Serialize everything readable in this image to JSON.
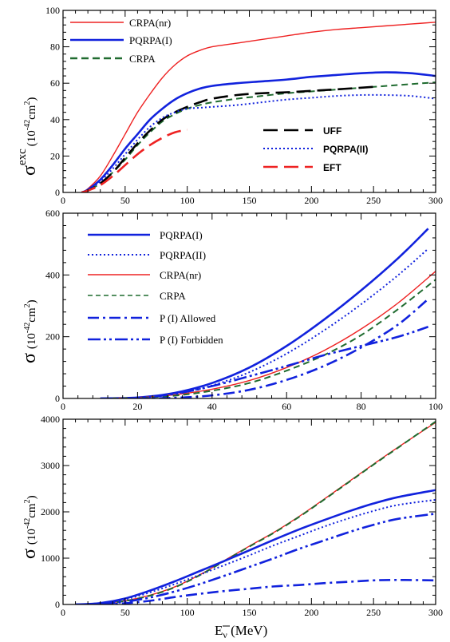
{
  "chart_data": [
    {
      "type": "line",
      "panel": "top",
      "ylabel_main": "σ",
      "ylabel_sup": "exc",
      "ylabel_units": "(10",
      "ylabel_exp": "-42",
      "ylabel_tail": "cm",
      "ylabel_tail_sup": "2",
      "ylabel_close": ")",
      "xlim": [
        0,
        300
      ],
      "ylim": [
        0,
        100
      ],
      "xticks": [
        "0",
        "50",
        "100",
        "150",
        "200",
        "250",
        "300"
      ],
      "yticks": [
        "0",
        "20",
        "40",
        "60",
        "80",
        "100"
      ],
      "legend_left": [
        "CRPA(nr)",
        "PQRPA(I)",
        "CRPA"
      ],
      "legend_right": [
        "UFF",
        "PQRPA(II)",
        "EFT"
      ],
      "series": [
        {
          "name": "CRPA(nr)",
          "color": "#ee2222",
          "style": "solid-thin",
          "x": [
            15,
            20,
            30,
            40,
            50,
            60,
            70,
            80,
            90,
            100,
            110,
            120,
            140,
            160,
            180,
            200,
            220,
            240,
            260,
            280,
            300
          ],
          "y": [
            0,
            2,
            9,
            20,
            32,
            44,
            54,
            63,
            70,
            75,
            78,
            80,
            82,
            84,
            86,
            88,
            89.5,
            90.5,
            91.5,
            92.5,
            93.5
          ]
        },
        {
          "name": "PQRPA(I)",
          "color": "#1122dd",
          "style": "solid-thick",
          "x": [
            15,
            20,
            30,
            40,
            50,
            60,
            70,
            80,
            90,
            100,
            110,
            120,
            140,
            160,
            180,
            200,
            220,
            240,
            260,
            280,
            300
          ],
          "y": [
            0,
            1.5,
            7,
            15,
            24,
            32,
            40,
            46,
            51,
            54.5,
            57,
            58.5,
            60,
            61,
            62,
            63.5,
            64.5,
            65.5,
            66,
            65.5,
            64
          ]
        },
        {
          "name": "CRPA",
          "color": "#1f6b2f",
          "style": "dash",
          "x": [
            15,
            20,
            30,
            40,
            50,
            60,
            70,
            80,
            90,
            100,
            110,
            120,
            140,
            160,
            180,
            200,
            220,
            240,
            260,
            280,
            300
          ],
          "y": [
            0,
            1,
            5,
            11,
            18,
            26,
            33,
            39,
            43,
            46,
            48,
            49.5,
            51.5,
            53,
            54.5,
            55.5,
            56.5,
            57.5,
            58.5,
            59.5,
            60.5
          ]
        },
        {
          "name": "UFF",
          "color": "#000000",
          "style": "longdash",
          "x": [
            15,
            20,
            30,
            40,
            50,
            60,
            70,
            80,
            90,
            100,
            110,
            120,
            140,
            160,
            180,
            200,
            220,
            250
          ],
          "y": [
            0,
            1,
            5,
            11,
            19,
            27,
            34,
            40,
            44,
            47,
            49.5,
            51.5,
            53.5,
            54.5,
            55,
            55.8,
            56.6,
            58
          ]
        },
        {
          "name": "PQRPA(II)",
          "color": "#1122dd",
          "style": "dot",
          "x": [
            15,
            20,
            30,
            40,
            50,
            60,
            70,
            80,
            90,
            100,
            110,
            120,
            140,
            160,
            180,
            200,
            220,
            240,
            260,
            280,
            300
          ],
          "y": [
            0,
            1,
            6,
            13,
            21,
            29,
            36,
            41,
            44,
            46,
            46.5,
            47,
            48,
            49.5,
            51,
            52,
            53,
            53.5,
            53.5,
            53,
            51.5
          ]
        },
        {
          "name": "EFT",
          "color": "#ee2222",
          "style": "longdash",
          "x": [
            15,
            20,
            30,
            40,
            50,
            60,
            70,
            80,
            90,
            100
          ],
          "y": [
            0,
            1,
            4,
            9,
            15,
            21,
            26,
            30,
            33,
            34.5
          ]
        }
      ]
    },
    {
      "type": "line",
      "panel": "middle",
      "ylabel_main": "σ",
      "ylabel_units": "(10",
      "ylabel_exp": "-42",
      "ylabel_tail": "cm",
      "ylabel_tail_sup": "2",
      "ylabel_close": ")",
      "xlim": [
        0,
        100
      ],
      "ylim": [
        0,
        600
      ],
      "xticks": [
        "0",
        "20",
        "40",
        "60",
        "80",
        "100"
      ],
      "yticks": [
        "0",
        "200",
        "400",
        "600"
      ],
      "legend": [
        "PQRPA(I)",
        "PQRPA(II)",
        "CRPA(nr)",
        "CRPA",
        "P (I) Allowed",
        "P (I) Forbidden"
      ],
      "series": [
        {
          "name": "PQRPA(I)",
          "color": "#1122dd",
          "style": "solid-thick",
          "x": [
            10,
            20,
            30,
            40,
            50,
            60,
            70,
            80,
            90,
            98
          ],
          "y": [
            0,
            3,
            18,
            50,
            100,
            170,
            255,
            350,
            455,
            550
          ]
        },
        {
          "name": "PQRPA(II)",
          "color": "#1122dd",
          "style": "dot",
          "x": [
            10,
            20,
            30,
            40,
            50,
            60,
            70,
            80,
            90,
            98
          ],
          "y": [
            0,
            2,
            14,
            42,
            85,
            145,
            220,
            305,
            400,
            485
          ]
        },
        {
          "name": "CRPA(nr)",
          "color": "#ee2222",
          "style": "solid-thin",
          "x": [
            10,
            20,
            30,
            40,
            50,
            60,
            70,
            80,
            90,
            100
          ],
          "y": [
            0,
            3,
            12,
            30,
            58,
            100,
            155,
            225,
            310,
            412
          ]
        },
        {
          "name": "CRPA",
          "color": "#1f6b2f",
          "style": "dash",
          "x": [
            10,
            20,
            30,
            40,
            50,
            60,
            70,
            80,
            90,
            100
          ],
          "y": [
            0,
            2,
            9,
            25,
            50,
            90,
            140,
            205,
            290,
            385
          ]
        },
        {
          "name": "P (I) Allowed",
          "color": "#1122dd",
          "style": "dashdot",
          "x": [
            20,
            30,
            40,
            50,
            60,
            70,
            80,
            90,
            98
          ],
          "y": [
            0,
            2,
            10,
            28,
            60,
            105,
            165,
            240,
            322
          ]
        },
        {
          "name": "P (I) Forbidden",
          "color": "#1122dd",
          "style": "dashdotdot",
          "x": [
            10,
            20,
            30,
            40,
            50,
            60,
            70,
            80,
            90,
            98
          ],
          "y": [
            0,
            2,
            15,
            40,
            72,
            105,
            140,
            170,
            200,
            232
          ]
        }
      ]
    },
    {
      "type": "line",
      "panel": "bottom",
      "ylabel_main": "σ",
      "ylabel_units": "(10",
      "ylabel_exp": "-42",
      "ylabel_tail": "cm",
      "ylabel_tail_sup": "2",
      "ylabel_close": ")",
      "xlabel_main": "E",
      "xlabel_sub": "ν",
      "xlabel_units": " (MeV)",
      "xlim": [
        0,
        300
      ],
      "ylim": [
        0,
        4000
      ],
      "xticks": [
        "0",
        "50",
        "100",
        "150",
        "200",
        "250",
        "300"
      ],
      "yticks": [
        "0",
        "1000",
        "2000",
        "3000",
        "4000"
      ],
      "series": [
        {
          "name": "CRPA(nr)",
          "color": "#ee2222",
          "style": "solid-thin",
          "x": [
            10,
            30,
            50,
            70,
            90,
            110,
            130,
            150,
            170,
            190,
            210,
            230,
            250,
            270,
            300
          ],
          "y": [
            0,
            20,
            80,
            200,
            380,
            640,
            950,
            1260,
            1560,
            1900,
            2270,
            2650,
            3030,
            3400,
            3930
          ]
        },
        {
          "name": "CRPA",
          "color": "#1f6b2f",
          "style": "dash",
          "x": [
            10,
            30,
            50,
            70,
            90,
            110,
            130,
            150,
            170,
            190,
            210,
            230,
            250,
            270,
            300
          ],
          "y": [
            0,
            18,
            75,
            190,
            370,
            630,
            940,
            1250,
            1550,
            1890,
            2260,
            2640,
            3020,
            3390,
            3950
          ]
        },
        {
          "name": "PQRPA(I)",
          "color": "#1122dd",
          "style": "solid-thick",
          "x": [
            10,
            30,
            50,
            70,
            90,
            110,
            130,
            150,
            170,
            190,
            210,
            230,
            250,
            270,
            300
          ],
          "y": [
            0,
            30,
            130,
            300,
            500,
            720,
            940,
            1170,
            1400,
            1620,
            1820,
            2010,
            2180,
            2320,
            2470
          ]
        },
        {
          "name": "PQRPA(II)",
          "color": "#1122dd",
          "style": "dot",
          "x": [
            10,
            30,
            50,
            70,
            90,
            110,
            130,
            150,
            170,
            190,
            210,
            230,
            250,
            270,
            300
          ],
          "y": [
            0,
            25,
            110,
            260,
            440,
            640,
            850,
            1060,
            1280,
            1480,
            1680,
            1860,
            2020,
            2150,
            2260
          ]
        },
        {
          "name": "P (I) Forbidden",
          "color": "#1122dd",
          "style": "dashdotdot",
          "x": [
            10,
            30,
            50,
            70,
            90,
            110,
            130,
            150,
            170,
            190,
            210,
            230,
            250,
            270,
            300
          ],
          "y": [
            0,
            15,
            60,
            150,
            280,
            440,
            620,
            810,
            1000,
            1200,
            1380,
            1560,
            1720,
            1850,
            1960
          ]
        },
        {
          "name": "P (I) Allowed",
          "color": "#1122dd",
          "style": "dashdot",
          "x": [
            30,
            50,
            70,
            90,
            110,
            130,
            150,
            170,
            190,
            210,
            230,
            250,
            270,
            300
          ],
          "y": [
            0,
            25,
            80,
            160,
            230,
            290,
            340,
            390,
            420,
            460,
            490,
            520,
            530,
            520
          ]
        }
      ]
    }
  ]
}
